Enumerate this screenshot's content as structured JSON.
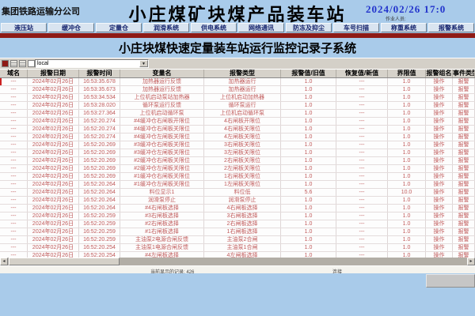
{
  "header": {
    "company": "集团铁路运输分公司",
    "title": "小庄煤矿块煤产品装车站",
    "datetime": "2024/02/26  17:0",
    "operator_label": "作业人员:"
  },
  "toolbar": {
    "buttons": [
      "液压站",
      "缓冲仓",
      "定量仓",
      "润滑系统",
      "供电系统",
      "网络通讯",
      "防冻及抑尘",
      "车号扫描",
      "称重系统",
      "报警系统"
    ]
  },
  "subtitle": "小庄块煤快速定量装车站运行监控记录子系统",
  "filter_bar": {
    "icons": [
      "run-icon",
      "grid-icon",
      "grid-icon-2",
      "page-icon",
      "printer-icon"
    ],
    "combo_value": "local",
    "dropdown_icon": "▼"
  },
  "table": {
    "columns": [
      "域名",
      "报警日期",
      "报警时间",
      "变量名",
      "报警类型",
      "报警值/旧值",
      "恢复值/新值",
      "界限值",
      "报警组名",
      "事件类型"
    ],
    "rows": [
      [
        "---",
        "2024年02月26日",
        "16:53:35.678",
        "加热器运行反馈",
        "加热器运行",
        "1.0",
        "---",
        "1.0",
        "操作",
        "报警"
      ],
      [
        "---",
        "2024年02月26日",
        "16:53:35.673",
        "加热器运行反馈",
        "加热器运行",
        "1.0",
        "---",
        "1.0",
        "操作",
        "报警"
      ],
      [
        "---",
        "2024年02月26日",
        "16:53:34.534",
        "上位机启动泵站加热器",
        "上位机启动加热器",
        "1.0",
        "---",
        "1.0",
        "操作",
        "报警"
      ],
      [
        "---",
        "2024年02月26日",
        "16:53:28.020",
        "循环泵运行反馈",
        "循环泵运行",
        "1.0",
        "---",
        "1.0",
        "操作",
        "报警"
      ],
      [
        "---",
        "2024年02月26日",
        "16:53:27.364",
        "上位机启动循环泵",
        "上位机启动循环泵",
        "1.0",
        "---",
        "1.0",
        "操作",
        "报警"
      ],
      [
        "---",
        "2024年02月26日",
        "16:52:20.274",
        "#4缓冲仓右闸板开限位",
        "4右闸板开限位",
        "1.0",
        "---",
        "1.0",
        "操作",
        "报警"
      ],
      [
        "---",
        "2024年02月26日",
        "16:52:20.274",
        "#4缓冲仓右闸板关限位",
        "4右闸板关限位",
        "1.0",
        "---",
        "1.0",
        "操作",
        "报警"
      ],
      [
        "---",
        "2024年02月26日",
        "16:52:20.274",
        "#4缓冲仓左闸板关限位",
        "4左闸板关限位",
        "1.0",
        "---",
        "1.0",
        "操作",
        "报警"
      ],
      [
        "---",
        "2024年02月26日",
        "16:52:20.269",
        "#3缓冲仓右闸板关限位",
        "3右闸板关限位",
        "1.0",
        "---",
        "1.0",
        "操作",
        "报警"
      ],
      [
        "---",
        "2024年02月26日",
        "16:52:20.269",
        "#3缓冲仓左闸板关限位",
        "3左闸板关限位",
        "1.0",
        "---",
        "1.0",
        "操作",
        "报警"
      ],
      [
        "---",
        "2024年02月26日",
        "16:52:20.269",
        "#2缓冲仓右闸板关限位",
        "2右闸板关限位",
        "1.0",
        "---",
        "1.0",
        "操作",
        "报警"
      ],
      [
        "---",
        "2024年02月26日",
        "16:52:20.269",
        "#2缓冲仓左闸板关限位",
        "2左闸板关限位",
        "1.0",
        "---",
        "1.0",
        "操作",
        "报警"
      ],
      [
        "---",
        "2024年02月26日",
        "16:52:20.269",
        "#1缓冲仓右闸板关限位",
        "1右闸板关限位",
        "1.0",
        "---",
        "1.0",
        "操作",
        "报警"
      ],
      [
        "---",
        "2024年02月26日",
        "16:52:20.264",
        "#1缓冲仓左闸板关限位",
        "1左闸板关限位",
        "1.0",
        "---",
        "1.0",
        "操作",
        "报警"
      ],
      [
        "---",
        "2024年02月26日",
        "16:52:20.264",
        "料位显示1",
        "料位低",
        "5.6",
        "---",
        "10.0",
        "操作",
        "报警"
      ],
      [
        "---",
        "2024年02月26日",
        "16:52:20.264",
        "润滑泵停止",
        "润滑泵停止",
        "1.0",
        "---",
        "1.0",
        "操作",
        "报警"
      ],
      [
        "---",
        "2024年02月26日",
        "16:52:20.264",
        "#4右闸板选择",
        "4右闸板选择",
        "1.0",
        "---",
        "1.0",
        "操作",
        "报警"
      ],
      [
        "---",
        "2024年02月26日",
        "16:52:20.259",
        "#3右闸板选择",
        "3右闸板选择",
        "1.0",
        "---",
        "1.0",
        "操作",
        "报警"
      ],
      [
        "---",
        "2024年02月26日",
        "16:52:20.259",
        "#2右闸板选择",
        "2右闸板选择",
        "1.0",
        "---",
        "1.0",
        "操作",
        "报警"
      ],
      [
        "---",
        "2024年02月26日",
        "16:52:20.259",
        "#1右闸板选择",
        "1右闸板选择",
        "1.0",
        "---",
        "1.0",
        "操作",
        "报警"
      ],
      [
        "---",
        "2024年02月26日",
        "16:52:20.259",
        "主油泵2电源合闸反馈",
        "主油泵2合闸",
        "1.0",
        "---",
        "1.0",
        "操作",
        "报警"
      ],
      [
        "---",
        "2024年02月26日",
        "16:52:20.254",
        "主油泵1电源合闸反馈",
        "主油泵1合闸",
        "1.0",
        "---",
        "1.0",
        "操作",
        "报警"
      ],
      [
        "---",
        "2024年02月26日",
        "16:52:20.254",
        "#4左闸板选择",
        "4左闸板选择",
        "1.0",
        "---",
        "1.0",
        "操作",
        "报警"
      ]
    ],
    "selected_row_index": 0
  },
  "statusbar": {
    "left": "当前显示的记录: 426",
    "right": "连接"
  },
  "colors": {
    "background_blue": "#a9cbea",
    "band_red": "#8e1a15",
    "alarm_text_red": "#c05a5a",
    "datetime_blue": "#2233cc",
    "button_text_navy": "#16246e",
    "chrome_gray": "#d4d0c8"
  }
}
